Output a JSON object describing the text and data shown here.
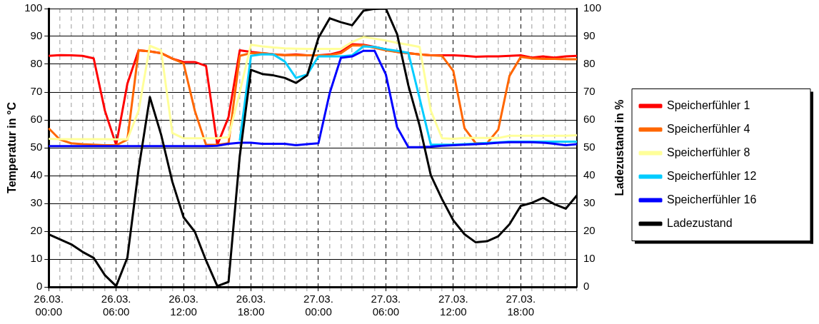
{
  "chart_data": {
    "type": "line",
    "ylabel": "Temperatur in °C",
    "y2label": "Ladezustand in %",
    "categories": [
      "26.03. 00:00",
      null,
      null,
      null,
      null,
      null,
      "26.03. 06:00",
      null,
      null,
      null,
      null,
      null,
      "26.03. 12:00",
      null,
      null,
      null,
      null,
      null,
      "26.03. 18:00",
      null,
      null,
      null,
      null,
      null,
      "27.03. 00:00",
      null,
      null,
      null,
      null,
      null,
      "27.03. 06:00",
      null,
      null,
      null,
      null,
      null,
      "27.03. 12:00",
      null,
      null,
      null,
      null,
      null,
      "27.03. 18:00",
      null,
      null,
      null,
      null,
      null
    ],
    "ylim": [
      0,
      100
    ],
    "yticks": [
      0,
      10,
      20,
      30,
      40,
      50,
      60,
      70,
      80,
      90,
      100
    ],
    "y2lim": [
      0,
      100
    ],
    "y2ticks": [
      0,
      10,
      20,
      30,
      40,
      50,
      60,
      70,
      80,
      90,
      100
    ],
    "grid": true,
    "legend": "right",
    "marker": "none",
    "line_style": "solid",
    "series": [
      {
        "name": "Speicherfühler 1",
        "color": "#ff0000",
        "values": [
          83,
          83.3,
          83.2,
          83,
          82.1,
          63.3,
          51,
          73,
          85,
          84.6,
          84,
          82,
          80.8,
          80.8,
          79.4,
          51,
          61,
          85,
          84.4,
          84,
          83.6,
          83.3,
          83.5,
          83.2,
          83.2,
          83.5,
          84.5,
          87.2,
          87,
          86.2,
          85.3,
          84.4,
          84,
          83.5,
          83.2,
          83.2,
          83.2,
          83,
          82.7,
          82.8,
          82.8,
          83,
          83.2,
          82.4,
          82.8,
          82.4,
          82.8,
          83
        ]
      },
      {
        "name": "Speicherfühler 4",
        "color": "#ff6600",
        "values": [
          57,
          52.9,
          51.6,
          51.3,
          51.1,
          50.9,
          50.9,
          52.9,
          85,
          84.6,
          84,
          82,
          80.3,
          63.3,
          51,
          51,
          51.6,
          83,
          84,
          84,
          83.5,
          83.3,
          83.3,
          83.2,
          83.2,
          83.3,
          84,
          86.7,
          86.8,
          85.9,
          85,
          84.4,
          84,
          83.5,
          83.2,
          83,
          77.6,
          57,
          51.6,
          51.6,
          56.5,
          75.8,
          82.6,
          82.1,
          81.9,
          81.9,
          81.8,
          81.8
        ]
      },
      {
        "name": "Speicherfühler 8",
        "color": "#ffff99",
        "values": [
          53.2,
          53.1,
          53.1,
          53.1,
          53.1,
          53.1,
          53,
          53,
          63.3,
          86.6,
          85,
          55.3,
          53.4,
          53.4,
          53.4,
          53.4,
          53.8,
          70,
          87,
          86.4,
          86,
          85.7,
          85.6,
          85.5,
          85.5,
          85.5,
          85.5,
          88,
          89.8,
          89.2,
          88.5,
          87.7,
          87,
          86.2,
          63.3,
          53.4,
          53.2,
          53.5,
          53.5,
          53.5,
          53.5,
          54.3,
          54.3,
          54.3,
          54.3,
          54.3,
          54.3,
          54.5
        ]
      },
      {
        "name": "Speicherfühler 12",
        "color": "#00ccff",
        "values": [
          null,
          null,
          null,
          null,
          null,
          null,
          null,
          null,
          null,
          null,
          null,
          null,
          null,
          null,
          null,
          null,
          null,
          52.5,
          83,
          83.6,
          83.5,
          81,
          75.1,
          76.3,
          82.8,
          82.8,
          82.8,
          83.2,
          86.4,
          86.2,
          85.4,
          84.8,
          84.1,
          67.8,
          51.1,
          51.1,
          51.1,
          51.3,
          51.5,
          51.7,
          51.9,
          52.2,
          52.2,
          52.2,
          52.2,
          52.2,
          52.2,
          52.2
        ]
      },
      {
        "name": "Speicherfühler 16",
        "color": "#0000ff",
        "values": [
          50.6,
          50.6,
          50.6,
          50.6,
          50.6,
          50.6,
          50.6,
          50.6,
          50.6,
          50.6,
          50.6,
          50.6,
          50.6,
          50.6,
          50.6,
          50.7,
          51.4,
          51.8,
          51.8,
          51.4,
          51.4,
          51.4,
          50.9,
          51.3,
          51.6,
          69.6,
          82.3,
          82.8,
          84.8,
          84.8,
          76.3,
          57.4,
          50.2,
          50.2,
          50.4,
          50.7,
          50.9,
          51.1,
          51.3,
          51.5,
          51.8,
          52,
          52,
          52,
          51.8,
          51.4,
          50.9,
          51.3
        ]
      },
      {
        "name": "Ladezustand",
        "color": "#000000",
        "axis": "y2",
        "values": [
          18.9,
          17.1,
          15.3,
          12.6,
          10.4,
          4.2,
          0.3,
          10.5,
          42.3,
          68.2,
          54.7,
          37.8,
          25,
          19.8,
          9.5,
          0.3,
          1.8,
          47,
          78,
          76.5,
          76,
          75.1,
          73.3,
          76,
          89.5,
          96.5,
          95.1,
          94,
          99.2,
          99.9,
          100,
          90.8,
          72.4,
          58,
          40.1,
          31.5,
          23.9,
          18.9,
          16,
          16.4,
          18.2,
          22.5,
          29.1,
          30.2,
          32,
          29.7,
          28.1,
          32.9
        ]
      }
    ]
  }
}
